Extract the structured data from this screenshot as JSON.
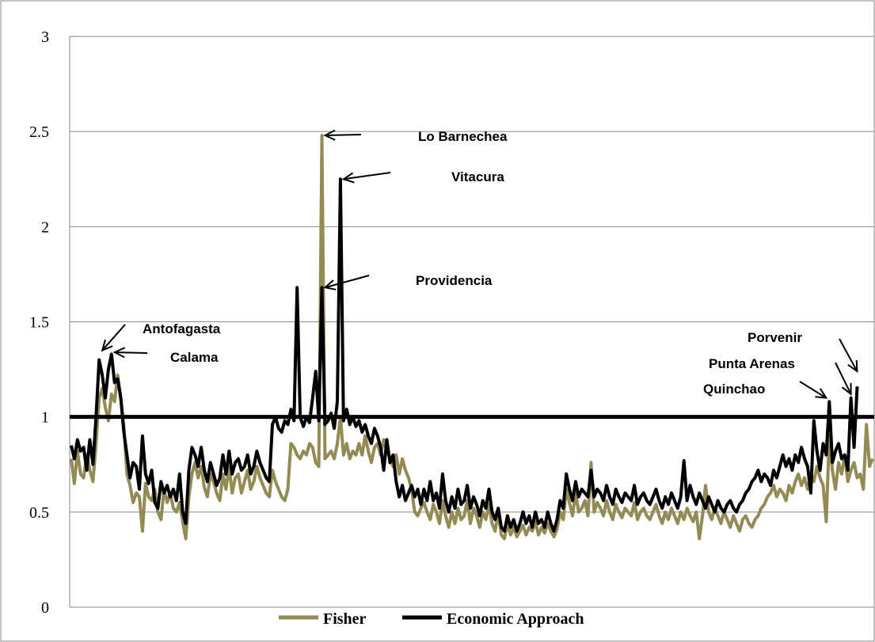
{
  "chart_data": {
    "type": "line",
    "title": "",
    "xlabel": "",
    "ylabel": "",
    "ylim": [
      0,
      3
    ],
    "yticks": [
      "0",
      "0.5",
      "1",
      "1.5",
      "2",
      "2.5",
      "3"
    ],
    "grid": true,
    "legend_position": "bottom",
    "reference_line": 1,
    "series": [
      {
        "name": "Fisher",
        "color": "#948A54",
        "values": [
          0.78,
          0.65,
          0.82,
          0.7,
          0.68,
          0.8,
          0.72,
          0.66,
          0.86,
          1.1,
          1.15,
          1.05,
          0.98,
          1.12,
          1.08,
          1.22,
          1.1,
          0.95,
          0.7,
          0.64,
          0.55,
          0.6,
          0.58,
          0.4,
          0.65,
          0.58,
          0.56,
          0.62,
          0.5,
          0.46,
          0.62,
          0.55,
          0.6,
          0.52,
          0.5,
          0.55,
          0.45,
          0.36,
          0.58,
          0.7,
          0.76,
          0.68,
          0.74,
          0.63,
          0.58,
          0.7,
          0.66,
          0.6,
          0.56,
          0.7,
          0.62,
          0.74,
          0.6,
          0.68,
          0.7,
          0.6,
          0.66,
          0.72,
          0.62,
          0.66,
          0.74,
          0.68,
          0.64,
          0.6,
          0.58,
          0.72,
          0.66,
          0.62,
          0.58,
          0.56,
          0.62,
          0.86,
          0.84,
          0.8,
          0.78,
          0.82,
          0.8,
          0.86,
          0.84,
          0.76,
          0.74,
          2.48,
          0.78,
          0.8,
          0.82,
          0.78,
          0.86,
          1.0,
          0.8,
          0.86,
          0.78,
          0.82,
          0.8,
          0.86,
          0.8,
          0.9,
          0.82,
          0.76,
          0.84,
          0.86,
          0.8,
          0.88,
          0.82,
          0.78,
          0.74,
          0.8,
          0.7,
          0.78,
          0.72,
          0.68,
          0.62,
          0.5,
          0.48,
          0.52,
          0.55,
          0.5,
          0.46,
          0.54,
          0.5,
          0.44,
          0.56,
          0.48,
          0.42,
          0.5,
          0.44,
          0.52,
          0.46,
          0.48,
          0.56,
          0.44,
          0.52,
          0.48,
          0.42,
          0.5,
          0.46,
          0.54,
          0.44,
          0.4,
          0.5,
          0.38,
          0.36,
          0.44,
          0.38,
          0.42,
          0.37,
          0.4,
          0.43,
          0.38,
          0.42,
          0.4,
          0.45,
          0.38,
          0.42,
          0.39,
          0.44,
          0.4,
          0.37,
          0.41,
          0.5,
          0.46,
          0.62,
          0.55,
          0.48,
          0.6,
          0.5,
          0.52,
          0.56,
          0.48,
          0.76,
          0.5,
          0.55,
          0.52,
          0.48,
          0.56,
          0.5,
          0.46,
          0.54,
          0.5,
          0.47,
          0.52,
          0.5,
          0.48,
          0.55,
          0.46,
          0.5,
          0.52,
          0.48,
          0.46,
          0.5,
          0.54,
          0.48,
          0.44,
          0.5,
          0.46,
          0.52,
          0.48,
          0.44,
          0.5,
          0.46,
          0.52,
          0.48,
          0.45,
          0.5,
          0.36,
          0.48,
          0.64,
          0.5,
          0.46,
          0.52,
          0.48,
          0.44,
          0.5,
          0.46,
          0.42,
          0.48,
          0.44,
          0.4,
          0.46,
          0.48,
          0.44,
          0.42,
          0.46,
          0.48,
          0.52,
          0.54,
          0.58,
          0.6,
          0.64,
          0.58,
          0.62,
          0.6,
          0.56,
          0.64,
          0.6,
          0.66,
          0.7,
          0.64,
          0.68,
          0.62,
          0.7,
          0.66,
          0.74,
          0.68,
          0.64,
          0.45,
          0.9,
          0.72,
          0.62,
          0.76,
          0.7,
          0.8,
          0.66,
          0.72,
          0.76,
          0.68,
          0.7,
          0.62,
          0.96,
          0.74,
          0.78
        ]
      },
      {
        "name": "Economic Approach",
        "color": "#000000",
        "values": [
          0.85,
          0.78,
          0.88,
          0.82,
          0.84,
          0.72,
          0.88,
          0.75,
          1.0,
          1.3,
          1.22,
          1.1,
          1.25,
          1.33,
          1.18,
          1.2,
          1.1,
          0.92,
          0.8,
          0.68,
          0.76,
          0.74,
          0.62,
          0.9,
          0.7,
          0.65,
          0.72,
          0.55,
          0.52,
          0.66,
          0.6,
          0.64,
          0.58,
          0.62,
          0.56,
          0.7,
          0.5,
          0.44,
          0.72,
          0.84,
          0.8,
          0.74,
          0.84,
          0.72,
          0.66,
          0.76,
          0.7,
          0.64,
          0.68,
          0.8,
          0.7,
          0.82,
          0.7,
          0.76,
          0.78,
          0.72,
          0.74,
          0.8,
          0.7,
          0.74,
          0.82,
          0.76,
          0.72,
          0.68,
          0.66,
          0.96,
          1.0,
          0.94,
          0.92,
          0.98,
          0.96,
          1.04,
          0.98,
          1.68,
          1.0,
          0.95,
          1.0,
          0.97,
          1.1,
          1.24,
          0.98,
          1.68,
          0.96,
          0.98,
          1.02,
          0.94,
          1.08,
          2.25,
          0.98,
          1.04,
          0.96,
          1.0,
          0.95,
          0.98,
          0.92,
          0.96,
          0.9,
          0.86,
          0.94,
          0.9,
          0.84,
          0.72,
          0.88,
          0.76,
          0.8,
          0.66,
          0.58,
          0.64,
          0.56,
          0.6,
          0.64,
          0.58,
          0.62,
          0.54,
          0.62,
          0.56,
          0.66,
          0.56,
          0.6,
          0.52,
          0.7,
          0.56,
          0.5,
          0.58,
          0.52,
          0.62,
          0.54,
          0.56,
          0.64,
          0.52,
          0.58,
          0.54,
          0.48,
          0.56,
          0.52,
          0.62,
          0.5,
          0.46,
          0.52,
          0.42,
          0.4,
          0.48,
          0.42,
          0.46,
          0.4,
          0.44,
          0.5,
          0.44,
          0.48,
          0.42,
          0.5,
          0.44,
          0.46,
          0.42,
          0.5,
          0.44,
          0.4,
          0.46,
          0.56,
          0.52,
          0.7,
          0.62,
          0.56,
          0.66,
          0.58,
          0.62,
          0.6,
          0.58,
          0.72,
          0.58,
          0.62,
          0.6,
          0.56,
          0.64,
          0.58,
          0.54,
          0.62,
          0.58,
          0.55,
          0.6,
          0.58,
          0.56,
          0.64,
          0.54,
          0.58,
          0.6,
          0.56,
          0.54,
          0.58,
          0.62,
          0.56,
          0.52,
          0.58,
          0.54,
          0.6,
          0.56,
          0.52,
          0.58,
          0.77,
          0.56,
          0.64,
          0.58,
          0.54,
          0.6,
          0.56,
          0.52,
          0.58,
          0.54,
          0.5,
          0.56,
          0.52,
          0.5,
          0.54,
          0.56,
          0.52,
          0.5,
          0.54,
          0.56,
          0.6,
          0.62,
          0.66,
          0.68,
          0.72,
          0.66,
          0.7,
          0.68,
          0.64,
          0.72,
          0.68,
          0.74,
          0.8,
          0.74,
          0.78,
          0.72,
          0.8,
          0.76,
          0.84,
          0.78,
          0.74,
          0.6,
          0.98,
          0.82,
          0.72,
          0.86,
          0.8,
          1.08,
          0.76,
          0.82,
          0.86,
          0.78,
          0.8,
          0.72,
          1.1,
          0.84,
          1.16
        ]
      }
    ],
    "annotations": [
      {
        "label": "Lo Barnechea",
        "target": {
          "x": 81,
          "y": 2.48
        }
      },
      {
        "label": "Vitacura",
        "target": {
          "x": 87,
          "y": 2.25
        }
      },
      {
        "label": "Providencia",
        "target": {
          "x": 81,
          "y": 1.68
        }
      },
      {
        "label": "Antofagasta",
        "target": {
          "x": 9,
          "y": 1.35
        }
      },
      {
        "label": "Calama",
        "target": {
          "x": 13,
          "y": 1.34
        }
      },
      {
        "label": "Porvenir",
        "target": {
          "x": 255,
          "y": 1.24
        }
      },
      {
        "label": "Punta Arenas",
        "target": {
          "x": 253,
          "y": 1.12
        }
      },
      {
        "label": "Quinchao",
        "target": {
          "x": 245,
          "y": 1.1
        }
      }
    ]
  }
}
